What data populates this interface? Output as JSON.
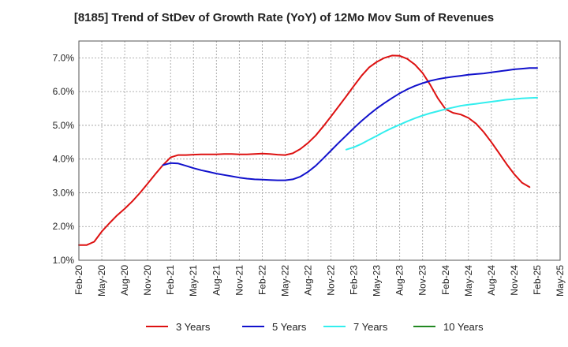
{
  "chart_data": {
    "type": "line",
    "title": "[8185]  Trend of StDev of Growth Rate (YoY) of 12Mo Mov Sum of Revenues",
    "xlabel": "",
    "ylabel": "",
    "ylim": [
      1.0,
      7.5
    ],
    "yticks": [
      1.0,
      2.0,
      3.0,
      4.0,
      5.0,
      6.0,
      7.0
    ],
    "ytick_labels": [
      "1.0%",
      "2.0%",
      "3.0%",
      "4.0%",
      "5.0%",
      "6.0%",
      "7.0%"
    ],
    "xlim": [
      0,
      63
    ],
    "xticks": [
      0,
      3,
      6,
      9,
      12,
      15,
      18,
      21,
      24,
      27,
      30,
      33,
      36,
      39,
      42,
      45,
      48,
      51,
      54,
      57,
      60,
      63
    ],
    "xtick_labels": [
      "Feb-20",
      "May-20",
      "Aug-20",
      "Nov-20",
      "Feb-21",
      "May-21",
      "Aug-21",
      "Nov-21",
      "Feb-22",
      "May-22",
      "Aug-22",
      "Nov-22",
      "Feb-23",
      "May-23",
      "Aug-23",
      "Nov-23",
      "Feb-24",
      "May-24",
      "Aug-24",
      "Nov-24",
      "Feb-25",
      "May-25"
    ],
    "grid": true,
    "legend_position": "bottom",
    "series": [
      {
        "name": "3 Years",
        "color": "#dd1111",
        "x": [
          0,
          1,
          2,
          3,
          4,
          5,
          6,
          7,
          8,
          9,
          10,
          11,
          12,
          13,
          14,
          15,
          16,
          17,
          18,
          19,
          20,
          21,
          22,
          23,
          24,
          25,
          26,
          27,
          28,
          29,
          30,
          31,
          32,
          33,
          34,
          35,
          36,
          37,
          38,
          39,
          40,
          41,
          42,
          43,
          44,
          45,
          46,
          47,
          48,
          49,
          50,
          51,
          52,
          53,
          54,
          55,
          56,
          57,
          58,
          59,
          60
        ],
        "values": [
          1.45,
          1.45,
          1.55,
          1.85,
          2.1,
          2.33,
          2.53,
          2.75,
          3.0,
          3.27,
          3.55,
          3.82,
          4.05,
          4.12,
          4.12,
          4.13,
          4.14,
          4.14,
          4.14,
          4.15,
          4.15,
          4.14,
          4.14,
          4.15,
          4.16,
          4.15,
          4.13,
          4.12,
          4.17,
          4.3,
          4.48,
          4.7,
          4.97,
          5.26,
          5.56,
          5.86,
          6.17,
          6.47,
          6.72,
          6.88,
          7.0,
          7.07,
          7.06,
          6.97,
          6.8,
          6.55,
          6.2,
          5.8,
          5.48,
          5.37,
          5.32,
          5.22,
          5.05,
          4.8,
          4.5,
          4.18,
          3.85,
          3.55,
          3.3,
          3.17,
          null
        ]
      },
      {
        "name": "5 Years",
        "color": "#1111cc",
        "x": [
          11,
          12,
          13,
          14,
          15,
          16,
          17,
          18,
          19,
          20,
          21,
          22,
          23,
          24,
          25,
          26,
          27,
          28,
          29,
          30,
          31,
          32,
          33,
          34,
          35,
          36,
          37,
          38,
          39,
          40,
          41,
          42,
          43,
          44,
          45,
          46,
          47,
          48,
          49,
          50,
          51,
          52,
          53,
          54,
          55,
          56,
          57,
          58,
          59,
          60
        ],
        "values": [
          3.82,
          3.88,
          3.87,
          3.8,
          3.73,
          3.67,
          3.62,
          3.57,
          3.53,
          3.49,
          3.45,
          3.42,
          3.4,
          3.39,
          3.38,
          3.37,
          3.37,
          3.4,
          3.48,
          3.62,
          3.8,
          4.02,
          4.25,
          4.48,
          4.7,
          4.92,
          5.13,
          5.32,
          5.5,
          5.66,
          5.81,
          5.95,
          6.07,
          6.17,
          6.25,
          6.32,
          6.37,
          6.41,
          6.44,
          6.47,
          6.5,
          6.52,
          6.54,
          6.57,
          6.6,
          6.63,
          6.66,
          6.68,
          6.7,
          6.7
        ]
      },
      {
        "name": "7 Years",
        "color": "#33eeee",
        "x": [
          35,
          36,
          37,
          38,
          39,
          40,
          41,
          42,
          43,
          44,
          45,
          46,
          47,
          48,
          49,
          50,
          51,
          52,
          53,
          54,
          55,
          56,
          57,
          58,
          59,
          60
        ],
        "values": [
          4.28,
          4.35,
          4.45,
          4.57,
          4.69,
          4.81,
          4.92,
          5.02,
          5.12,
          5.21,
          5.29,
          5.36,
          5.42,
          5.48,
          5.53,
          5.58,
          5.61,
          5.64,
          5.67,
          5.7,
          5.73,
          5.76,
          5.78,
          5.8,
          5.81,
          5.82
        ]
      },
      {
        "name": "10 Years",
        "color": "#228822",
        "x": [],
        "values": []
      }
    ]
  }
}
